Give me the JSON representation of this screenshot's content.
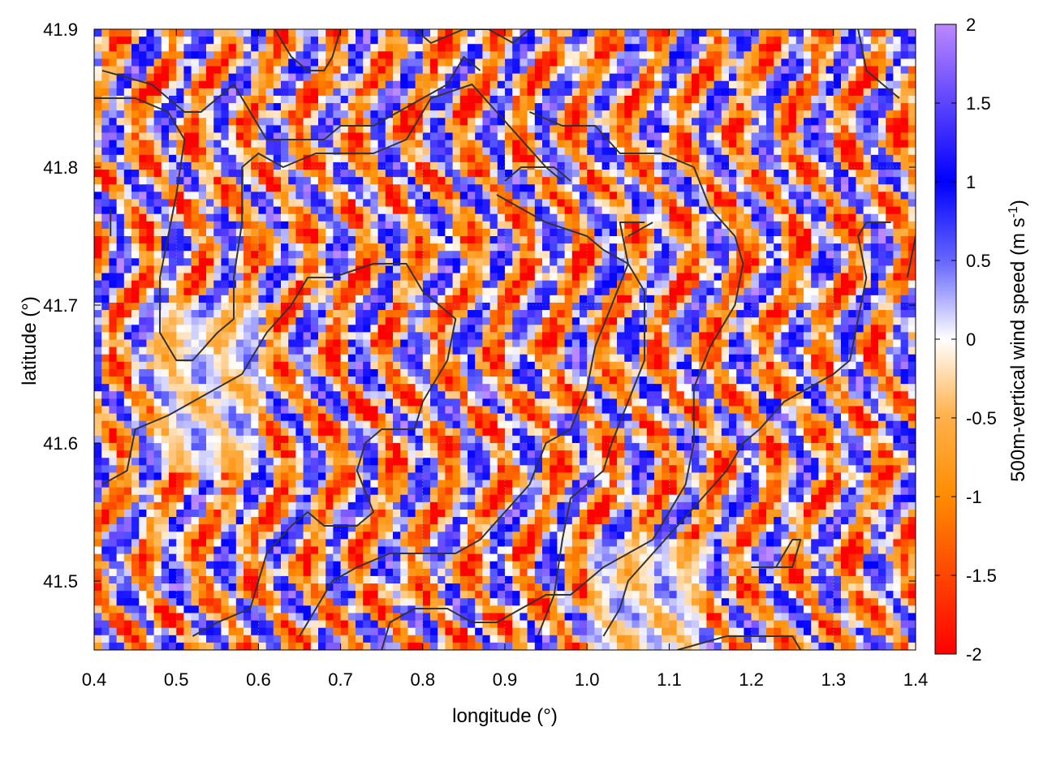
{
  "chart_data": {
    "type": "heatmap",
    "title": "",
    "xlabel": "longitude (°)",
    "ylabel": "latitude (°)",
    "colorbar_label": "500m-vertical wind speed (m s",
    "colorbar_label_sup": "-1",
    "colorbar_label_close": ")",
    "xlim": [
      0.4,
      1.4
    ],
    "ylim": [
      41.45,
      41.9
    ],
    "zlim": [
      -2,
      2
    ],
    "x_ticks": [
      "0.4",
      "0.5",
      "0.6",
      "0.7",
      "0.8",
      "0.9",
      "1.0",
      "1.1",
      "1.2",
      "1.3",
      "1.4"
    ],
    "y_ticks": [
      "41.5",
      "41.6",
      "41.7",
      "41.8",
      "41.9"
    ],
    "colorbar_ticks": [
      "-2",
      "-1.5",
      "-1",
      "-0.5",
      "0",
      "0.5",
      "1",
      "1.5",
      "2"
    ],
    "colormap": [
      "#ff0000",
      "#ff8c00",
      "#ffa500",
      "#ffffff",
      "#0000ff",
      "#bb88ff"
    ],
    "grid": true,
    "field_description": "Fine-scale alternating updraft/downdraft bands over terrain; mostly between -1 and 1.5 m/s",
    "contours": [
      [
        [
          0.41,
          41.87
        ],
        [
          0.47,
          41.86
        ],
        [
          0.51,
          41.84
        ],
        [
          0.53,
          41.84
        ],
        [
          0.57,
          41.86
        ],
        [
          0.61,
          41.82
        ],
        [
          0.68,
          41.82
        ],
        [
          0.7,
          41.83
        ],
        [
          0.74,
          41.83
        ],
        [
          0.77,
          41.84
        ],
        [
          0.8,
          41.85
        ],
        [
          0.83,
          41.86
        ],
        [
          0.85,
          41.88
        ],
        [
          0.87,
          41.87
        ]
      ],
      [
        [
          0.4,
          41.85
        ],
        [
          0.45,
          41.85
        ],
        [
          0.49,
          41.84
        ],
        [
          0.51,
          41.82
        ],
        [
          0.5,
          41.78
        ],
        [
          0.49,
          41.75
        ],
        [
          0.48,
          41.72
        ],
        [
          0.48,
          41.68
        ],
        [
          0.5,
          41.66
        ],
        [
          0.52,
          41.66
        ],
        [
          0.55,
          41.68
        ],
        [
          0.57,
          41.69
        ],
        [
          0.57,
          41.72
        ],
        [
          0.58,
          41.76
        ],
        [
          0.58,
          41.8
        ],
        [
          0.6,
          41.81
        ],
        [
          0.63,
          41.8
        ],
        [
          0.67,
          41.81
        ],
        [
          0.7,
          41.81
        ],
        [
          0.74,
          41.81
        ],
        [
          0.78,
          41.82
        ],
        [
          0.81,
          41.85
        ],
        [
          0.86,
          41.86
        ],
        [
          0.89,
          41.84
        ],
        [
          0.92,
          41.82
        ],
        [
          0.95,
          41.8
        ],
        [
          0.97,
          41.79
        ]
      ],
      [
        [
          0.62,
          41.9
        ],
        [
          0.64,
          41.88
        ],
        [
          0.66,
          41.87
        ],
        [
          0.68,
          41.87
        ],
        [
          0.69,
          41.88
        ],
        [
          0.7,
          41.9
        ]
      ],
      [
        [
          0.79,
          41.9
        ],
        [
          0.81,
          41.89
        ],
        [
          0.85,
          41.9
        ],
        [
          0.88,
          41.9
        ],
        [
          0.91,
          41.89
        ],
        [
          0.93,
          41.9
        ]
      ],
      [
        [
          0.93,
          41.84
        ],
        [
          0.97,
          41.83
        ],
        [
          1.01,
          41.83
        ],
        [
          1.04,
          41.81
        ],
        [
          1.09,
          41.81
        ],
        [
          1.13,
          41.8
        ],
        [
          1.15,
          41.77
        ],
        [
          1.18,
          41.75
        ],
        [
          1.19,
          41.73
        ],
        [
          1.18,
          41.7
        ],
        [
          1.15,
          41.67
        ],
        [
          1.13,
          41.64
        ],
        [
          1.13,
          41.6
        ],
        [
          1.12,
          41.57
        ],
        [
          1.1,
          41.55
        ],
        [
          1.08,
          41.53
        ],
        [
          1.05,
          41.52
        ],
        [
          1.02,
          41.51
        ],
        [
          1.0,
          41.5
        ],
        [
          0.98,
          41.49
        ],
        [
          0.95,
          41.49
        ],
        [
          0.92,
          41.48
        ],
        [
          0.89,
          41.47
        ],
        [
          0.86,
          41.47
        ],
        [
          0.83,
          41.48
        ],
        [
          0.79,
          41.48
        ],
        [
          0.76,
          41.47
        ],
        [
          0.75,
          41.45
        ]
      ],
      [
        [
          0.9,
          41.79
        ],
        [
          0.92,
          41.8
        ],
        [
          0.96,
          41.8
        ],
        [
          0.98,
          41.79
        ]
      ],
      [
        [
          0.89,
          41.78
        ],
        [
          0.92,
          41.77
        ],
        [
          0.95,
          41.76
        ],
        [
          1.0,
          41.75
        ],
        [
          1.02,
          41.74
        ],
        [
          1.05,
          41.73
        ],
        [
          1.07,
          41.71
        ],
        [
          1.07,
          41.66
        ],
        [
          1.05,
          41.63
        ],
        [
          1.03,
          41.6
        ],
        [
          1.02,
          41.58
        ],
        [
          0.98,
          41.56
        ],
        [
          0.97,
          41.53
        ],
        [
          0.96,
          41.49
        ],
        [
          0.94,
          41.46
        ]
      ],
      [
        [
          0.41,
          41.57
        ],
        [
          0.44,
          41.58
        ],
        [
          0.45,
          41.61
        ],
        [
          0.49,
          41.62
        ],
        [
          0.55,
          41.64
        ],
        [
          0.58,
          41.65
        ],
        [
          0.61,
          41.68
        ],
        [
          0.64,
          41.7
        ],
        [
          0.66,
          41.72
        ],
        [
          0.69,
          41.72
        ],
        [
          0.74,
          41.73
        ],
        [
          0.78,
          41.73
        ],
        [
          0.8,
          41.71
        ],
        [
          0.82,
          41.7
        ],
        [
          0.84,
          41.69
        ],
        [
          0.83,
          41.66
        ],
        [
          0.8,
          41.63
        ],
        [
          0.79,
          41.61
        ],
        [
          0.75,
          41.61
        ],
        [
          0.73,
          41.6
        ],
        [
          0.72,
          41.58
        ],
        [
          0.74,
          41.55
        ],
        [
          0.72,
          41.54
        ],
        [
          0.68,
          41.54
        ],
        [
          0.66,
          41.55
        ],
        [
          0.64,
          41.54
        ],
        [
          0.61,
          41.52
        ],
        [
          0.6,
          41.5
        ],
        [
          0.59,
          41.48
        ],
        [
          0.55,
          41.47
        ],
        [
          0.52,
          41.46
        ]
      ],
      [
        [
          0.65,
          41.46
        ],
        [
          0.69,
          41.5
        ],
        [
          0.72,
          41.51
        ],
        [
          0.76,
          41.52
        ],
        [
          0.79,
          41.52
        ],
        [
          0.84,
          41.52
        ],
        [
          0.87,
          41.53
        ],
        [
          0.9,
          41.55
        ],
        [
          0.93,
          41.57
        ],
        [
          0.95,
          41.6
        ],
        [
          0.98,
          41.61
        ],
        [
          1.0,
          41.64
        ],
        [
          1.01,
          41.67
        ],
        [
          1.03,
          41.7
        ],
        [
          1.05,
          41.73
        ],
        [
          1.04,
          41.76
        ],
        [
          1.07,
          41.76
        ]
      ],
      [
        [
          1.02,
          41.46
        ],
        [
          1.04,
          41.48
        ],
        [
          1.05,
          41.5
        ],
        [
          1.08,
          41.52
        ],
        [
          1.11,
          41.54
        ],
        [
          1.14,
          41.56
        ],
        [
          1.17,
          41.58
        ],
        [
          1.19,
          41.6
        ],
        [
          1.21,
          41.61
        ],
        [
          1.24,
          41.63
        ],
        [
          1.27,
          41.64
        ],
        [
          1.3,
          41.65
        ],
        [
          1.32,
          41.66
        ],
        [
          1.33,
          41.69
        ],
        [
          1.34,
          41.72
        ],
        [
          1.33,
          41.75
        ],
        [
          1.34,
          41.76
        ],
        [
          1.37,
          41.76
        ]
      ],
      [
        [
          1.11,
          41.45
        ],
        [
          1.17,
          41.46
        ],
        [
          1.21,
          41.46
        ],
        [
          1.25,
          41.46
        ],
        [
          1.26,
          41.45
        ]
      ],
      [
        [
          1.2,
          41.51
        ],
        [
          1.22,
          41.51
        ],
        [
          1.25,
          41.51
        ],
        [
          1.26,
          41.53
        ],
        [
          1.25,
          41.53
        ],
        [
          1.23,
          41.51
        ]
      ],
      [
        [
          1.33,
          41.9
        ],
        [
          1.34,
          41.87
        ],
        [
          1.38,
          41.85
        ]
      ],
      [
        [
          1.42,
          41.78
        ],
        [
          1.4,
          41.75
        ],
        [
          1.39,
          41.72
        ]
      ],
      [
        [
          0.42,
          41.77
        ],
        [
          0.42,
          41.75
        ]
      ],
      [
        [
          1.05,
          41.75
        ],
        [
          1.08,
          41.76
        ]
      ]
    ]
  }
}
